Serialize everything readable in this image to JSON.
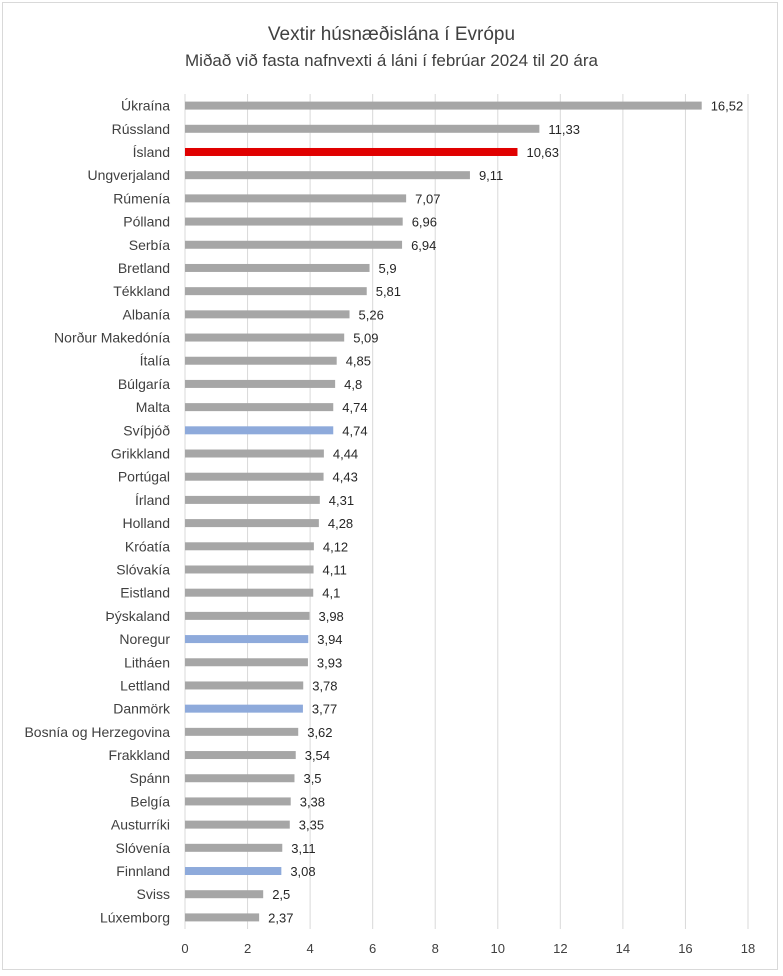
{
  "chart_data": {
    "type": "bar",
    "orientation": "horizontal",
    "title": "Vextir húsnæðislána  í Evrópu",
    "subtitle": "Miðað við fasta nafnvexti á láni í febrúar 2024 til 20 ára",
    "xlim": [
      0,
      18
    ],
    "xticks": [
      0,
      2,
      4,
      6,
      8,
      10,
      12,
      14,
      16,
      18
    ],
    "grid": true,
    "colors": {
      "default": "#a6a6a6",
      "highlight": "#e00000",
      "nordic": "#8eaadb"
    },
    "categories": [
      "Úkraína",
      "Rússland",
      "Ísland",
      "Ungverjaland",
      "Rúmenía",
      "Pólland",
      "Serbía",
      "Bretland",
      "Tékkland",
      "Albanía",
      "Norður Makedónía",
      "Ítalía",
      "Búlgaría",
      "Malta",
      "Svíþjóð",
      "Grikkland",
      "Portúgal",
      "Írland",
      "Holland",
      "Króatía",
      "Slóvakía",
      "Eistland",
      "Þýskaland",
      "Noregur",
      "Litháen",
      "Lettland",
      "Danmörk",
      "Bosnía og Herzegovina",
      "Frakkland",
      "Spánn",
      "Belgía",
      "Austurríki",
      "Slóvenía",
      "Finnland",
      "Sviss",
      "Lúxemborg"
    ],
    "values": [
      16.52,
      11.33,
      10.63,
      9.11,
      7.07,
      6.96,
      6.94,
      5.9,
      5.81,
      5.26,
      5.09,
      4.85,
      4.8,
      4.74,
      4.74,
      4.44,
      4.43,
      4.31,
      4.28,
      4.12,
      4.11,
      4.1,
      3.98,
      3.94,
      3.93,
      3.78,
      3.77,
      3.62,
      3.54,
      3.5,
      3.38,
      3.35,
      3.11,
      3.08,
      2.5,
      2.37
    ],
    "value_labels": [
      "16,52",
      "11,33",
      "10,63",
      "9,11",
      "7,07",
      "6,96",
      "6,94",
      "5,9",
      "5,81",
      "5,26",
      "5,09",
      "4,85",
      "4,8",
      "4,74",
      "4,74",
      "4,44",
      "4,43",
      "4,31",
      "4,28",
      "4,12",
      "4,11",
      "4,1",
      "3,98",
      "3,94",
      "3,93",
      "3,78",
      "3,77",
      "3,62",
      "3,54",
      "3,5",
      "3,38",
      "3,35",
      "3,11",
      "3,08",
      "2,5",
      "2,37"
    ],
    "bar_colors": [
      "default",
      "default",
      "highlight",
      "default",
      "default",
      "default",
      "default",
      "default",
      "default",
      "default",
      "default",
      "default",
      "default",
      "default",
      "nordic",
      "default",
      "default",
      "default",
      "default",
      "default",
      "default",
      "default",
      "default",
      "nordic",
      "default",
      "default",
      "nordic",
      "default",
      "default",
      "default",
      "default",
      "default",
      "default",
      "nordic",
      "default",
      "default"
    ]
  }
}
